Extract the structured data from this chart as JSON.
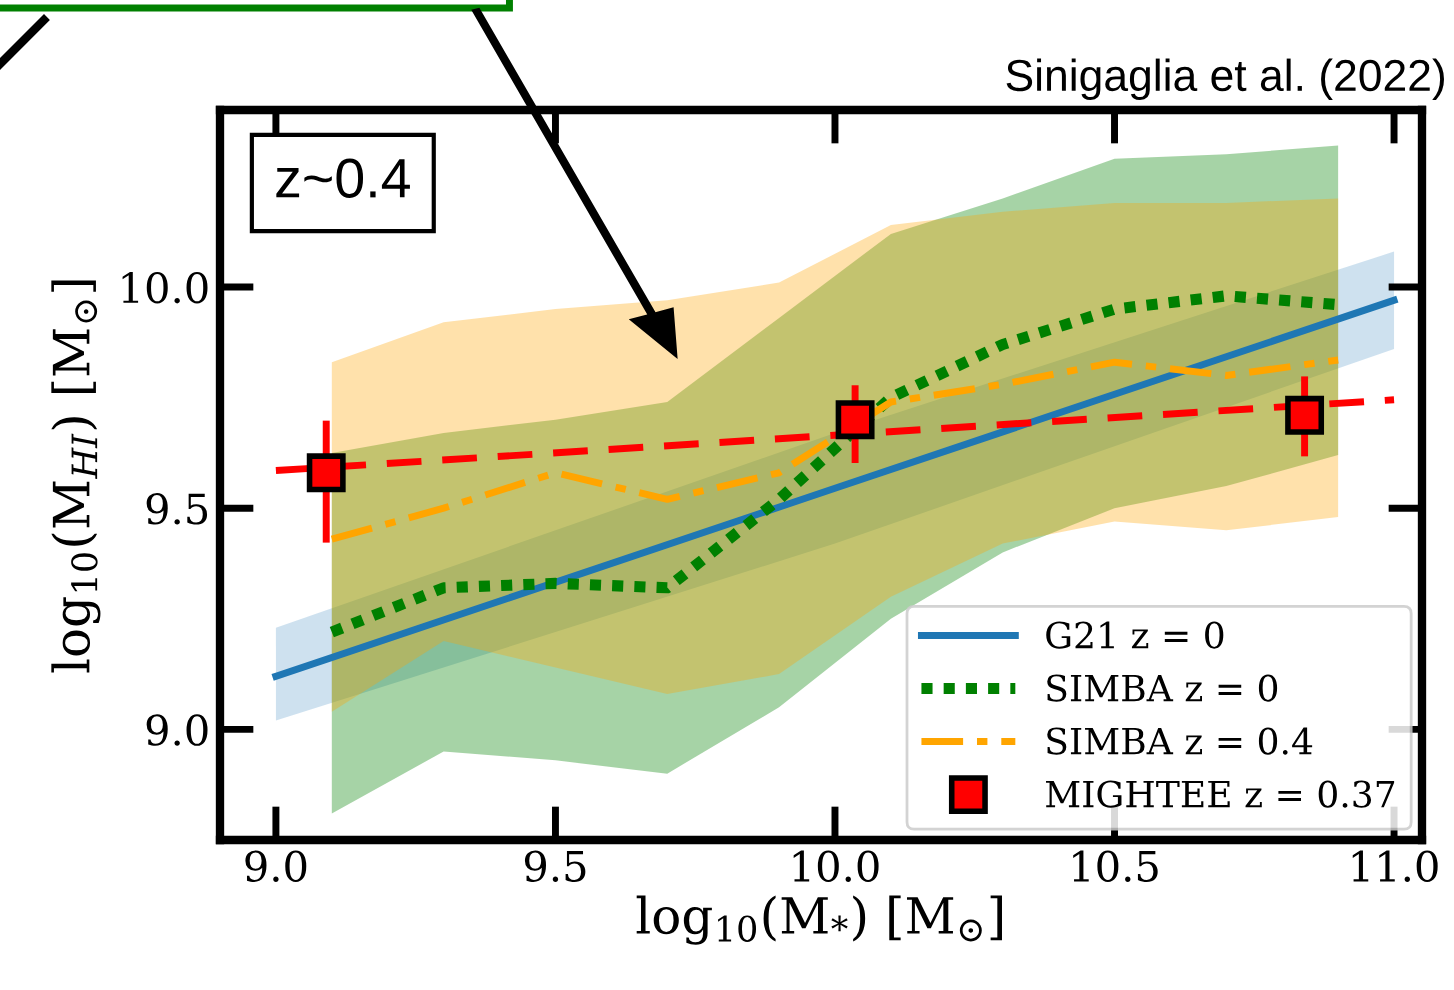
{
  "chart_data": {
    "type": "line",
    "xlabel": "log$_{10}$(M$_{*}$) [M$_{⊙}$]",
    "ylabel": "log$_{10}$(M$_{HI}$) [M$_{⊙}$]",
    "xlim": [
      8.9,
      11.05
    ],
    "ylim": [
      8.75,
      10.4
    ],
    "xticks": [
      {
        "value": 9.0,
        "label": "9.0"
      },
      9.5,
      {
        "value": 10.0,
        "label": "10.0"
      },
      10.5,
      {
        "value": 11.0,
        "label": "11.0"
      }
    ],
    "yticks": [
      {
        "value": 9.0,
        "label": "9.0"
      },
      9.5,
      {
        "value": 10.0,
        "label": "10.0"
      }
    ],
    "grid": false,
    "legend": "bottom right",
    "annotations": [
      "Sinigaglia et al. (2022)",
      "z~0.4"
    ],
    "series": [
      {
        "name": "G21 z = 0",
        "color": "#1f77b4",
        "line_style": "solid",
        "x": [
          9.0,
          10.0,
          11.0
        ],
        "values": [
          9.12,
          9.545,
          9.97
        ],
        "lower": [
          9.02,
          9.42,
          9.86
        ],
        "upper": [
          9.23,
          9.67,
          10.08
        ]
      },
      {
        "name": "SIMBA z = 0",
        "color": "#008000",
        "line_style": "dotted",
        "x": [
          9.1,
          9.3,
          9.5,
          9.7,
          9.9,
          10.1,
          10.3,
          10.5,
          10.7,
          10.9
        ],
        "values": [
          9.22,
          9.32,
          9.33,
          9.32,
          9.52,
          9.75,
          9.87,
          9.95,
          9.98,
          9.96
        ],
        "lower": [
          8.81,
          8.95,
          8.93,
          8.9,
          9.05,
          9.25,
          9.4,
          9.5,
          9.55,
          9.62
        ],
        "upper": [
          9.625,
          9.67,
          9.7,
          9.74,
          9.93,
          10.12,
          10.2,
          10.29,
          10.3,
          10.32
        ]
      },
      {
        "name": "SIMBA z = 0.4",
        "color": "#ffa500",
        "line_style": "dashdot",
        "x": [
          9.1,
          9.3,
          9.5,
          9.7,
          9.9,
          10.1,
          10.3,
          10.5,
          10.7,
          10.9
        ],
        "values": [
          9.43,
          9.5,
          9.58,
          9.52,
          9.58,
          9.74,
          9.78,
          9.83,
          9.8,
          9.835
        ],
        "lower": [
          9.04,
          9.2,
          9.14,
          9.08,
          9.125,
          9.3,
          9.42,
          9.47,
          9.45,
          9.48
        ],
        "upper": [
          9.83,
          9.92,
          9.95,
          9.97,
          10.01,
          10.14,
          10.17,
          10.19,
          10.19,
          10.2
        ]
      },
      {
        "color": "#ff0000",
        "line_style": "dashed",
        "x": [
          9.0,
          11.0
        ],
        "values": [
          9.585,
          9.745
        ]
      },
      {
        "name": "MIGHTEE z = 0.37",
        "type": "scatter",
        "color": "#ff0000",
        "marker": "square",
        "x": [
          9.09,
          10.036,
          10.84
        ],
        "values": [
          9.58,
          9.7,
          9.71
        ],
        "errors": [
          [
            9.43,
            9.69
          ],
          [
            9.61,
            9.77
          ],
          [
            9.625,
            9.79
          ]
        ]
      }
    ]
  }
}
